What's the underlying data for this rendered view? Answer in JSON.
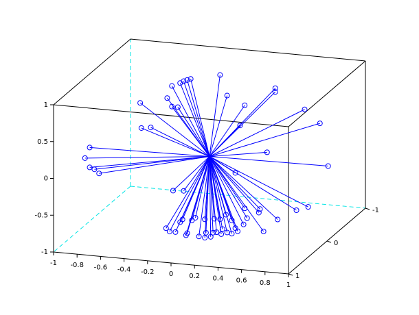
{
  "chart_data": {
    "type": "stem3d",
    "color": "#0000ff",
    "x": [
      0.09,
      -0.16,
      -0.19,
      -0.22,
      -0.25,
      -0.32,
      0.15,
      0.56,
      0.56,
      -0.36,
      -0.59,
      -0.32,
      -0.27,
      0.3,
      0.81,
      0.94,
      0.26,
      -0.58,
      -0.5,
      -1.02,
      -1.06,
      0.49,
      -1.02,
      -0.98,
      -0.94,
      1.01,
      0.22,
      -0.31,
      -0.22,
      0.84,
      0.74,
      0.3,
      0.43,
      0.42,
      0.58,
      -0.37,
      -0.34,
      -0.29,
      -0.25,
      -0.23,
      -0.19,
      -0.15,
      -0.12,
      -0.04,
      0.04,
      0.09,
      0.14,
      0.19,
      0.22,
      0.29,
      0.32,
      0.46,
      -0.2,
      -0.09,
      -0.04,
      0.01,
      0.03,
      0.06,
      0.1,
      0.15,
      0.19,
      0.24,
      0.11,
      -0.03
    ],
    "y": [
      0,
      0,
      0,
      0,
      0,
      0,
      0,
      0,
      0,
      0,
      0,
      0,
      0,
      0,
      0,
      0,
      0,
      0,
      0,
      0,
      0,
      0,
      0,
      0,
      0,
      0,
      0,
      0,
      0,
      0,
      0,
      0,
      0,
      0,
      0,
      0,
      0,
      0,
      0,
      0,
      0,
      0,
      0,
      0,
      0,
      0,
      0,
      0,
      0,
      0,
      0,
      0,
      0,
      0,
      0,
      0,
      0,
      0,
      0,
      0,
      0,
      0,
      0,
      0
    ],
    "z": [
      1.12,
      1.03,
      1.01,
      0.99,
      0.96,
      0.91,
      0.85,
      1.01,
      0.96,
      0.74,
      0.64,
      0.63,
      0.63,
      0.74,
      0.76,
      0.59,
      0.46,
      0.3,
      0.32,
      -0.03,
      -0.18,
      0.13,
      -0.3,
      -0.32,
      -0.37,
      0.02,
      -0.19,
      -0.51,
      -0.5,
      -0.56,
      -0.62,
      -0.66,
      -0.65,
      -0.7,
      -0.77,
      -1.03,
      -1.07,
      -1.07,
      -0.93,
      -0.89,
      -1.07,
      -0.89,
      -0.85,
      -0.86,
      -0.84,
      -0.84,
      -0.77,
      -0.84,
      -0.94,
      -0.88,
      -0.79,
      -0.95,
      -1.1,
      -1.1,
      -1.11,
      -1.09,
      -1.03,
      -1.02,
      -1.04,
      -1.01,
      -1.02,
      -0.98,
      -0.97,
      -1.04
    ],
    "xlim": [
      -1,
      1
    ],
    "ylim": [
      -1,
      1
    ],
    "zlim": [
      -1,
      1
    ],
    "xticks": [
      -1,
      -0.8,
      -0.6,
      -0.4,
      -0.2,
      0,
      0.2,
      0.4,
      0.6,
      0.8,
      1
    ],
    "yticks": [
      -1,
      0,
      1
    ],
    "zticks": [
      -1,
      -0.5,
      0,
      0.5,
      1
    ]
  }
}
